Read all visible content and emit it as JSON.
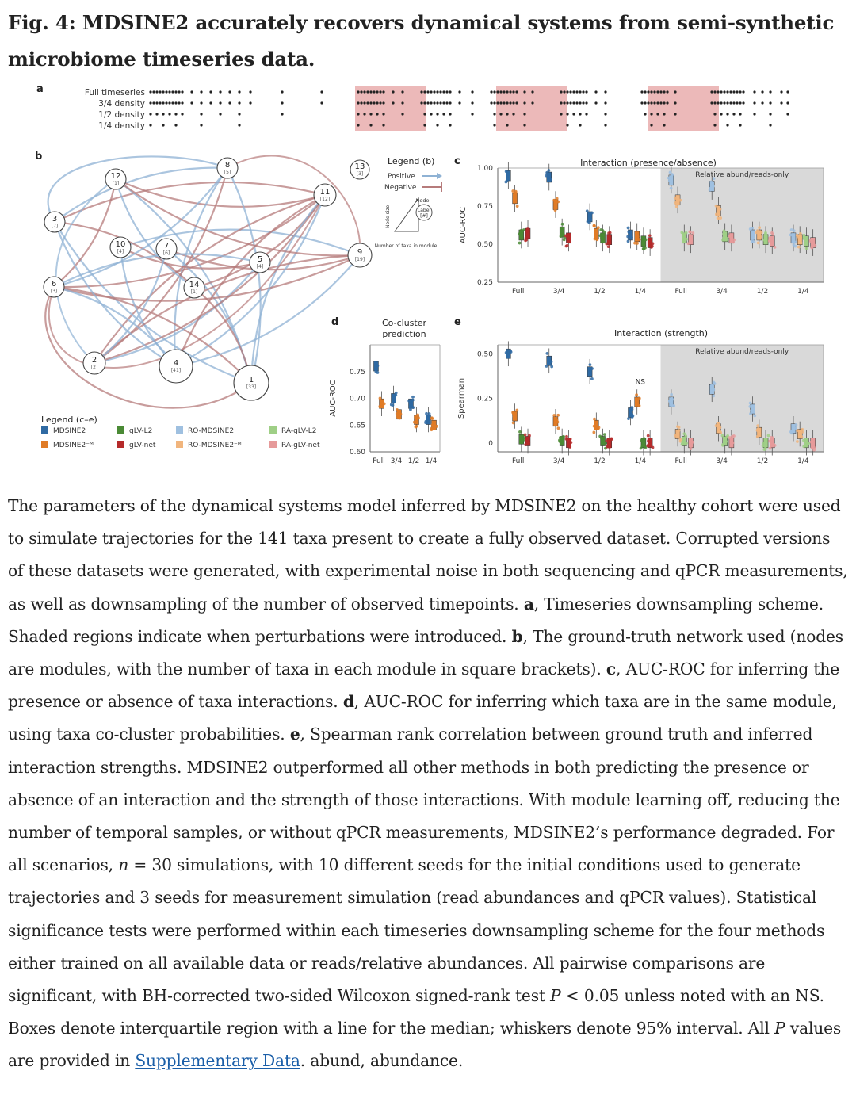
{
  "figure_title": "Fig. 4: MDSINE2 accurately recovers dynamical systems from semi-synthetic microbiome timeseries data.",
  "panel_labels": {
    "a": "a",
    "b": "b",
    "c": "c",
    "d": "d",
    "e": "e"
  },
  "panel_a": {
    "rows": [
      "Full timeseries",
      "3/4 density",
      "1/2 density",
      "1/4 density"
    ]
  },
  "panel_b": {
    "nodes": [
      {
        "id": "12",
        "count": "[1]"
      },
      {
        "id": "8",
        "count": "[5]"
      },
      {
        "id": "11",
        "count": "[12]"
      },
      {
        "id": "3",
        "count": "[7]"
      },
      {
        "id": "10",
        "count": "[4]"
      },
      {
        "id": "7",
        "count": "[6]"
      },
      {
        "id": "5",
        "count": "[4]"
      },
      {
        "id": "9",
        "count": "[19]"
      },
      {
        "id": "6",
        "count": "[3]"
      },
      {
        "id": "14",
        "count": "[1]"
      },
      {
        "id": "2",
        "count": "[2]"
      },
      {
        "id": "4",
        "count": "[41]"
      },
      {
        "id": "1",
        "count": "[33]"
      },
      {
        "id": "13",
        "count": "[3]"
      }
    ],
    "legend_title": "Legend (b)",
    "legend_positive": "Positive",
    "legend_negative": "Negative",
    "legend_node": "Node",
    "legend_label": "Label",
    "legend_label_id": "[#]",
    "legend_node_size": "Node size",
    "legend_number": "Number of taxa in module"
  },
  "legend_ce": {
    "title": "Legend (c–e)",
    "items": [
      {
        "label": "MDSINE2",
        "color": "#2f6aa3"
      },
      {
        "label": "MDSINE2⁻ᴹ",
        "color": "#e07b26"
      },
      {
        "label": "gLV-L2",
        "color": "#4a8a35"
      },
      {
        "label": "gLV-net",
        "color": "#b52a2a"
      },
      {
        "label": "RO-MDSINE2",
        "color": "#9fc0e0"
      },
      {
        "label": "RO-MDSINE2⁻ᴹ",
        "color": "#f1b57d"
      },
      {
        "label": "RA-gLV-L2",
        "color": "#9fcf86"
      },
      {
        "label": "RA-gLV-net",
        "color": "#e69a9a"
      }
    ]
  },
  "chart_data": [
    {
      "panel": "c",
      "type": "scatter",
      "title": "Interaction (presence/absence)",
      "shaded_label": "Relative abund/reads-only",
      "ylabel": "AUC-ROC",
      "ylim": [
        0.25,
        1.0
      ],
      "yticks": [
        "0.25",
        "0.50",
        "0.75",
        "1.00"
      ],
      "categories": [
        "Full",
        "3/4",
        "1/2",
        "1/4",
        "Full",
        "3/4",
        "1/2",
        "1/4"
      ],
      "series": [
        {
          "values": [
            0.95,
            0.94,
            0.68,
            0.56,
            0.92,
            0.88,
            0.56,
            0.54
          ]
        },
        {
          "values": [
            0.8,
            0.76,
            0.57,
            0.55,
            0.79,
            0.72,
            0.56,
            0.53
          ]
        },
        {
          "values": [
            0.56,
            0.58,
            0.54,
            0.52,
            0.54,
            0.55,
            0.53,
            0.52
          ]
        },
        {
          "values": [
            0.57,
            0.54,
            0.53,
            0.51,
            0.53,
            0.54,
            0.52,
            0.51
          ]
        }
      ]
    },
    {
      "panel": "d",
      "type": "scatter",
      "title": "Co-cluster prediction",
      "ylabel": "AUC-ROC",
      "ylim": [
        0.6,
        0.8
      ],
      "yticks": [
        "0.60",
        "0.65",
        "0.70",
        "0.75"
      ],
      "categories": [
        "Full",
        "3/4",
        "1/2",
        "1/4"
      ],
      "series": [
        {
          "values": [
            0.76,
            0.7,
            0.69,
            0.66
          ]
        },
        {
          "values": [
            0.69,
            0.67,
            0.66,
            0.65
          ]
        }
      ]
    },
    {
      "panel": "e",
      "type": "scatter",
      "title": "Interaction (strength)",
      "shaded_label": "Relative abund/reads-only",
      "annotation": "NS",
      "ylabel": "Spearman",
      "ylim": [
        -0.05,
        0.55
      ],
      "yticks": [
        "0",
        "0.25",
        "0.50"
      ],
      "categories": [
        "Full",
        "3/4",
        "1/2",
        "1/4",
        "Full",
        "3/4",
        "1/2",
        "1/4"
      ],
      "series": [
        {
          "values": [
            0.5,
            0.46,
            0.4,
            0.17,
            0.23,
            0.3,
            0.19,
            0.08
          ]
        },
        {
          "values": [
            0.15,
            0.12,
            0.1,
            0.23,
            0.05,
            0.08,
            0.06,
            0.05
          ]
        },
        {
          "values": [
            0.02,
            0.01,
            0.01,
            0.0,
            0.01,
            0.01,
            0.0,
            0.0
          ]
        },
        {
          "values": [
            0.01,
            0.0,
            0.0,
            0.0,
            0.0,
            0.0,
            0.0,
            0.0
          ]
        }
      ]
    }
  ],
  "caption_parts": [
    {
      "t": "The parameters of the dynamical systems model inferred by MDSINE2 on the healthy cohort were used to simulate trajectories for the 141 taxa present to create a fully observed dataset. Corrupted versions of these datasets were generated, with experimental noise in both sequencing and qPCR measurements, as well as downsampling of the number of observed timepoints. "
    },
    {
      "b": "a"
    },
    {
      "t": ", Timeseries downsampling scheme. Shaded regions indicate when perturbations were introduced. "
    },
    {
      "b": "b"
    },
    {
      "t": ", The ground-truth network used (nodes are modules, with the number of taxa in each module in square brackets). "
    },
    {
      "b": "c"
    },
    {
      "t": ", AUC-ROC for inferring the presence or absence of taxa interactions. "
    },
    {
      "b": "d"
    },
    {
      "t": ", AUC-ROC for inferring which taxa are in the same module, using taxa co-cluster probabilities. "
    },
    {
      "b": "e"
    },
    {
      "t": ", Spearman rank correlation between ground truth and inferred interaction strengths. MDSINE2 outperformed all other methods in both predicting the presence or absence of an interaction and the strength of those interactions. With module learning off, reducing the number of temporal samples, or without qPCR measurements, MDSINE2’s performance degraded. For all scenarios, "
    },
    {
      "i": "n"
    },
    {
      "t": " = 30 simulations, with 10 different seeds for the initial conditions used to generate trajectories and 3 seeds for measurement simulation (read abundances and qPCR values). Statistical significance tests were performed within each timeseries downsampling scheme for the four methods either trained on all available data or reads/relative abundances. All pairwise comparisons are significant, with BH-corrected two-sided Wilcoxon signed-rank test "
    },
    {
      "i": "P"
    },
    {
      "t": " < 0.05 unless noted with an NS. Boxes denote interquartile region with a line for the median; whiskers denote 95% interval. All "
    },
    {
      "i": "P"
    },
    {
      "t": " values are provided in "
    },
    {
      "a": "Supplementary Data"
    },
    {
      "t": ". abund, abundance."
    }
  ]
}
